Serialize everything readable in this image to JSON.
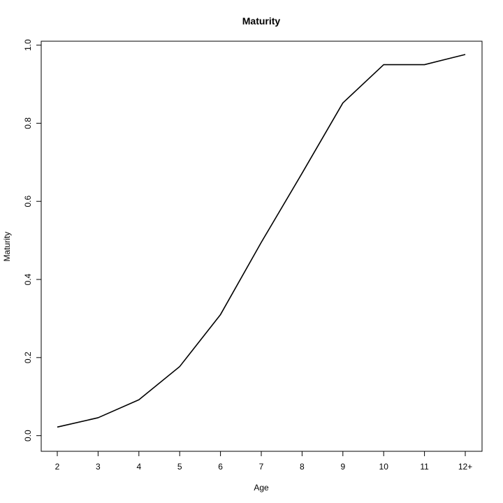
{
  "chart_data": {
    "type": "line",
    "title": "Maturity",
    "xlabel": "Age",
    "ylabel": "Maturity",
    "categories": [
      "2",
      "3",
      "4",
      "5",
      "6",
      "7",
      "8",
      "9",
      "10",
      "11",
      "12+"
    ],
    "series": [
      {
        "values": [
          0.022,
          0.046,
          0.092,
          0.177,
          0.31,
          0.495,
          0.672,
          0.852,
          0.95,
          0.95,
          0.976
        ]
      }
    ],
    "ylim": [
      -0.04,
      1.01
    ],
    "yticks": [
      "0.0",
      "0.2",
      "0.4",
      "0.6",
      "0.8",
      "1.0"
    ],
    "grid": false,
    "line_color": "#000000"
  }
}
